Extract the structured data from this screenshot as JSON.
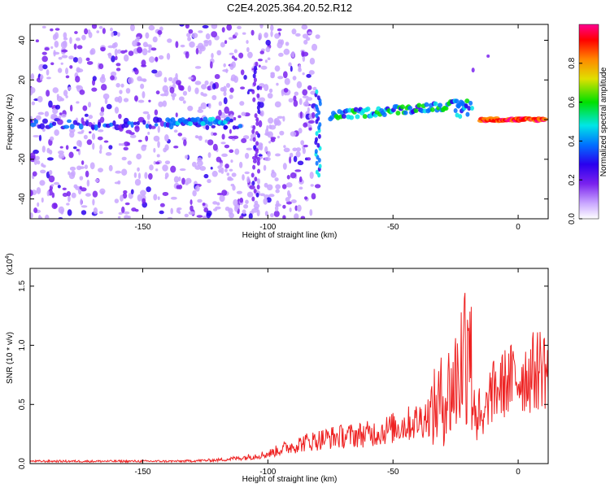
{
  "figure_title": "C2E4.2025.364.20.52.R12",
  "chart_data": [
    {
      "type": "heatmap",
      "xlabel": "Height of straight line (km)",
      "ylabel": "Frequency (Hz)",
      "xlim": [
        -195,
        12
      ],
      "ylim": [
        -50,
        48
      ],
      "xticks": [
        -150,
        -100,
        -50,
        0
      ],
      "xtick_labels": [
        "-150",
        "-100",
        "-50",
        "0"
      ],
      "yticks": [
        -40,
        -20,
        0,
        20,
        40
      ],
      "ytick_labels": [
        "-40",
        "-20",
        "0",
        "20",
        "40"
      ],
      "colorbar": {
        "label": "Normalized spectral amplitude",
        "range": [
          0.0,
          1.0
        ],
        "ticks": [
          0.0,
          0.2,
          0.4,
          0.6,
          0.8
        ],
        "tick_labels": [
          "0.0",
          "0.2",
          "0.4",
          "0.6",
          "0.8"
        ],
        "colormap": [
          "#ffffff",
          "#c9a6ff",
          "#7a22ee",
          "#2a00ee",
          "#0070ff",
          "#00e6e6",
          "#00e000",
          "#e0e000",
          "#ff8800",
          "#ff0000",
          "#ff0090"
        ]
      },
      "features": [
        {
          "name": "scattered noise",
          "x": [
            -195,
            -80
          ],
          "y": [
            -50,
            48
          ],
          "amplitude": 0.15
        },
        {
          "name": "ridge segment 1",
          "x": [
            -195,
            -110
          ],
          "freq_hz": -2,
          "amplitude": 0.3
        },
        {
          "name": "vertical streak",
          "x": -80,
          "y": [
            -28,
            15
          ],
          "amplitude": 0.45
        },
        {
          "name": "main ridge",
          "x": [
            -75,
            -20
          ],
          "freq_hz": [
            2,
            8
          ],
          "amplitude": 0.5
        },
        {
          "name": "strong ridge",
          "x": [
            -15,
            10
          ],
          "freq_hz": 0,
          "amplitude": 0.95
        }
      ]
    },
    {
      "type": "line",
      "xlabel": "Height of straight line (km)",
      "ylabel": "SNR (10 * v/v)",
      "y_scale_label": "(x10",
      "y_scale_exponent": "4",
      "xlim": [
        -195,
        12
      ],
      "ylim": [
        0.0,
        1.65
      ],
      "xticks": [
        -150,
        -100,
        -50,
        0
      ],
      "xtick_labels": [
        "-150",
        "-100",
        "-50",
        "0"
      ],
      "yticks": [
        0.0,
        0.5,
        1.0,
        1.5
      ],
      "ytick_labels": [
        "0.0",
        "0.5",
        "1.0",
        "1.5"
      ],
      "line_color": "#ee2222",
      "series": [
        {
          "name": "SNR",
          "x": [
            -195,
            -180,
            -165,
            -150,
            -135,
            -120,
            -110,
            -100,
            -95,
            -90,
            -85,
            -80,
            -75,
            -70,
            -65,
            -60,
            -55,
            -50,
            -45,
            -40,
            -35,
            -30,
            -27,
            -25,
            -22,
            -20,
            -18,
            -16,
            -14,
            -12,
            -10,
            -7,
            -4,
            -1,
            2,
            5,
            8,
            10,
            12
          ],
          "y": [
            0.02,
            0.02,
            0.02,
            0.02,
            0.02,
            0.03,
            0.05,
            0.08,
            0.12,
            0.15,
            0.18,
            0.2,
            0.22,
            0.23,
            0.24,
            0.25,
            0.27,
            0.3,
            0.33,
            0.36,
            0.42,
            0.55,
            0.62,
            0.7,
            0.9,
            1.2,
            0.6,
            0.4,
            0.3,
            0.55,
            0.6,
            0.65,
            0.7,
            0.72,
            0.74,
            0.76,
            0.8,
            0.85,
            0.75
          ]
        }
      ]
    }
  ]
}
